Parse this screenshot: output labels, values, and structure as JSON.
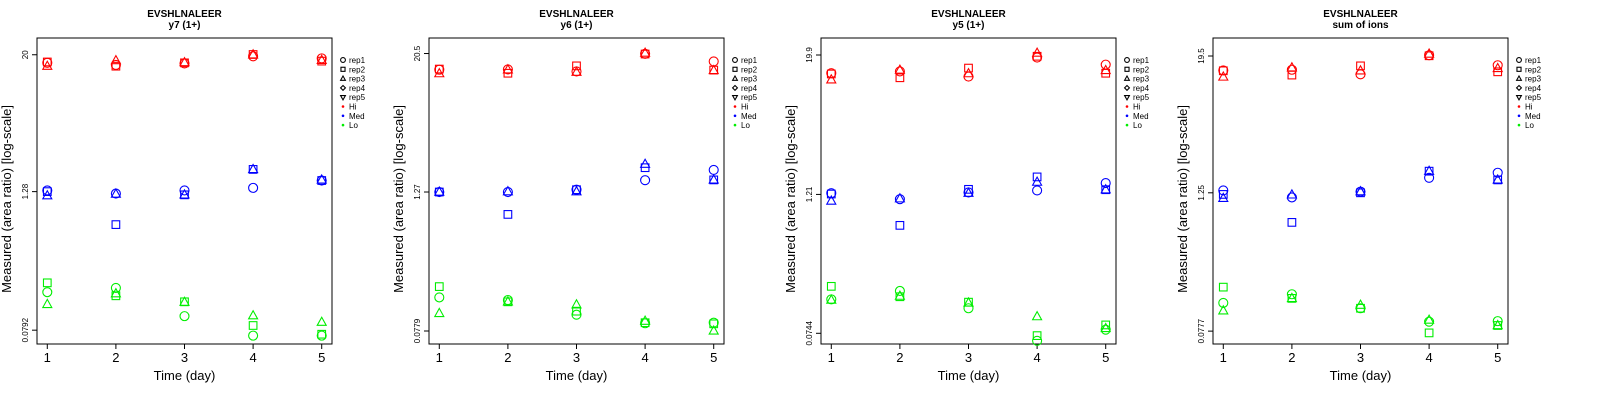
{
  "chart_data": [
    {
      "type": "scatter",
      "title": "EVSHLNALEER",
      "subtitle": "y7 (1+)",
      "xlabel": "Time (day)",
      "ylabel": "Measured (area ratio) [log-scale]",
      "x_ticks": [
        1,
        2,
        3,
        4,
        5
      ],
      "y_ticks": [
        {
          "value": 0.0792,
          "label": "0.0792"
        },
        {
          "value": 1.28,
          "label": "1.28"
        },
        {
          "value": 20,
          "label": "20"
        }
      ],
      "ylim": [
        0.06,
        28
      ],
      "groups": [
        {
          "name": "Hi",
          "color": "#ff0000"
        },
        {
          "name": "Med",
          "color": "#0000ff"
        },
        {
          "name": "Lo",
          "color": "#00ee00"
        }
      ],
      "reps": [
        "rep1",
        "rep2",
        "rep3",
        "rep4",
        "rep5"
      ],
      "series": [
        {
          "name": "Hi-rep1",
          "group": "Hi",
          "shape": "circle",
          "x": [
            1,
            2,
            3,
            4,
            5
          ],
          "y": [
            17.0,
            16.3,
            16.8,
            19.4,
            18.6
          ]
        },
        {
          "name": "Hi-rep2",
          "group": "Hi",
          "shape": "square",
          "x": [
            1,
            2,
            3,
            4,
            5
          ],
          "y": [
            17.3,
            15.9,
            17.0,
            20.1,
            17.6
          ]
        },
        {
          "name": "Hi-rep3",
          "group": "Hi",
          "shape": "triangle",
          "x": [
            1,
            2,
            3,
            4,
            5
          ],
          "y": [
            15.9,
            17.8,
            17.1,
            20.0,
            17.9
          ]
        },
        {
          "name": "Med-rep1",
          "group": "Med",
          "shape": "circle",
          "x": [
            1,
            2,
            3,
            4,
            5
          ],
          "y": [
            1.31,
            1.23,
            1.31,
            1.38,
            1.6
          ]
        },
        {
          "name": "Med-rep2",
          "group": "Med",
          "shape": "square",
          "x": [
            1,
            2,
            3,
            4,
            5
          ],
          "y": [
            1.28,
            0.66,
            1.2,
            2.0,
            1.6
          ]
        },
        {
          "name": "Med-rep3",
          "group": "Med",
          "shape": "triangle",
          "x": [
            1,
            2,
            3,
            4,
            5
          ],
          "y": [
            1.18,
            1.22,
            1.2,
            2.0,
            1.62
          ]
        },
        {
          "name": "Lo-rep1",
          "group": "Lo",
          "shape": "circle",
          "x": [
            1,
            2,
            3,
            4,
            5
          ],
          "y": [
            0.17,
            0.185,
            0.105,
            0.071,
            0.071
          ]
        },
        {
          "name": "Lo-rep2",
          "group": "Lo",
          "shape": "square",
          "x": [
            1,
            2,
            3,
            4,
            5
          ],
          "y": [
            0.205,
            0.158,
            0.14,
            0.087,
            0.073
          ]
        },
        {
          "name": "Lo-rep3",
          "group": "Lo",
          "shape": "triangle",
          "x": [
            1,
            2,
            3,
            4,
            5
          ],
          "y": [
            0.133,
            0.165,
            0.139,
            0.106,
            0.093
          ]
        }
      ]
    },
    {
      "type": "scatter",
      "title": "EVSHLNALEER",
      "subtitle": "y6 (1+)",
      "xlabel": "Time (day)",
      "ylabel": "Measured (area ratio) [log-scale]",
      "x_ticks": [
        1,
        2,
        3,
        4,
        5
      ],
      "y_ticks": [
        {
          "value": 0.0779,
          "label": "0.0779"
        },
        {
          "value": 1.27,
          "label": "1.27"
        },
        {
          "value": 20.5,
          "label": "20.5"
        }
      ],
      "ylim": [
        0.06,
        28
      ],
      "groups": [
        {
          "name": "Hi",
          "color": "#ff0000"
        },
        {
          "name": "Med",
          "color": "#0000ff"
        },
        {
          "name": "Lo",
          "color": "#00ee00"
        }
      ],
      "reps": [
        "rep1",
        "rep2",
        "rep3",
        "rep4",
        "rep5"
      ],
      "series": [
        {
          "name": "Hi-rep1",
          "group": "Hi",
          "shape": "circle",
          "x": [
            1,
            2,
            3,
            4,
            5
          ],
          "y": [
            14.8,
            14.9,
            14.3,
            20.4,
            17.5
          ]
        },
        {
          "name": "Hi-rep2",
          "group": "Hi",
          "shape": "square",
          "x": [
            1,
            2,
            3,
            4,
            5
          ],
          "y": [
            15.0,
            13.8,
            16.0,
            20.3,
            14.7
          ]
        },
        {
          "name": "Hi-rep3",
          "group": "Hi",
          "shape": "triangle",
          "x": [
            1,
            2,
            3,
            4,
            5
          ],
          "y": [
            13.7,
            14.8,
            14.1,
            20.7,
            14.6
          ]
        },
        {
          "name": "Med-rep1",
          "group": "Med",
          "shape": "circle",
          "x": [
            1,
            2,
            3,
            4,
            5
          ],
          "y": [
            1.27,
            1.27,
            1.33,
            1.61,
            1.98
          ]
        },
        {
          "name": "Med-rep2",
          "group": "Med",
          "shape": "square",
          "x": [
            1,
            2,
            3,
            4,
            5
          ],
          "y": [
            1.27,
            0.81,
            1.33,
            2.07,
            1.62
          ]
        },
        {
          "name": "Med-rep3",
          "group": "Med",
          "shape": "triangle",
          "x": [
            1,
            2,
            3,
            4,
            5
          ],
          "y": [
            1.27,
            1.28,
            1.28,
            2.22,
            1.62
          ]
        },
        {
          "name": "Lo-rep1",
          "group": "Lo",
          "shape": "circle",
          "x": [
            1,
            2,
            3,
            4,
            5
          ],
          "y": [
            0.153,
            0.145,
            0.108,
            0.091,
            0.092
          ]
        },
        {
          "name": "Lo-rep2",
          "group": "Lo",
          "shape": "square",
          "x": [
            1,
            2,
            3,
            4,
            5
          ],
          "y": [
            0.19,
            0.14,
            0.116,
            0.092,
            0.09
          ]
        },
        {
          "name": "Lo-rep3",
          "group": "Lo",
          "shape": "triangle",
          "x": [
            1,
            2,
            3,
            4,
            5
          ],
          "y": [
            0.111,
            0.14,
            0.132,
            0.095,
            0.078
          ]
        }
      ]
    },
    {
      "type": "scatter",
      "title": "EVSHLNALEER",
      "subtitle": "y5 (1+)",
      "xlabel": "Time (day)",
      "ylabel": "Measured (area ratio) [log-scale]",
      "x_ticks": [
        1,
        2,
        3,
        4,
        5
      ],
      "y_ticks": [
        {
          "value": 0.0744,
          "label": "0.0744"
        },
        {
          "value": 1.21,
          "label": "1.21"
        },
        {
          "value": 19.9,
          "label": "19.9"
        }
      ],
      "ylim": [
        0.06,
        28
      ],
      "groups": [
        {
          "name": "Hi",
          "color": "#ff0000"
        },
        {
          "name": "Med",
          "color": "#0000ff"
        },
        {
          "name": "Lo",
          "color": "#00ee00"
        }
      ],
      "reps": [
        "rep1",
        "rep2",
        "rep3",
        "rep4",
        "rep5"
      ],
      "series": [
        {
          "name": "Hi-rep1",
          "group": "Hi",
          "shape": "circle",
          "x": [
            1,
            2,
            3,
            4,
            5
          ],
          "y": [
            13.8,
            14.3,
            12.9,
            18.9,
            16.4
          ]
        },
        {
          "name": "Hi-rep2",
          "group": "Hi",
          "shape": "square",
          "x": [
            1,
            2,
            3,
            4,
            5
          ],
          "y": [
            13.6,
            12.6,
            15.3,
            19.4,
            13.8
          ]
        },
        {
          "name": "Hi-rep3",
          "group": "Hi",
          "shape": "triangle",
          "x": [
            1,
            2,
            3,
            4,
            5
          ],
          "y": [
            12.1,
            14.7,
            13.7,
            20.7,
            14.6
          ]
        },
        {
          "name": "Med-rep1",
          "group": "Med",
          "shape": "circle",
          "x": [
            1,
            2,
            3,
            4,
            5
          ],
          "y": [
            1.24,
            1.1,
            1.26,
            1.31,
            1.52
          ]
        },
        {
          "name": "Med-rep2",
          "group": "Med",
          "shape": "square",
          "x": [
            1,
            2,
            3,
            4,
            5
          ],
          "y": [
            1.22,
            0.65,
            1.34,
            1.72,
            1.33
          ]
        },
        {
          "name": "Med-rep3",
          "group": "Med",
          "shape": "triangle",
          "x": [
            1,
            2,
            3,
            4,
            5
          ],
          "y": [
            1.06,
            1.11,
            1.24,
            1.55,
            1.33
          ]
        },
        {
          "name": "Lo-rep1",
          "group": "Lo",
          "shape": "circle",
          "x": [
            1,
            2,
            3,
            4,
            5
          ],
          "y": [
            0.147,
            0.174,
            0.123,
            0.064,
            0.08
          ]
        },
        {
          "name": "Lo-rep2",
          "group": "Lo",
          "shape": "square",
          "x": [
            1,
            2,
            3,
            4,
            5
          ],
          "y": [
            0.191,
            0.155,
            0.139,
            0.071,
            0.088
          ]
        },
        {
          "name": "Lo-rep3",
          "group": "Lo",
          "shape": "triangle",
          "x": [
            1,
            2,
            3,
            4,
            5
          ],
          "y": [
            0.145,
            0.157,
            0.137,
            0.104,
            0.082
          ]
        }
      ]
    },
    {
      "type": "scatter",
      "title": "EVSHLNALEER",
      "subtitle": "sum of ions",
      "xlabel": "Time (day)",
      "ylabel": "Measured (area ratio) [log-scale]",
      "x_ticks": [
        1,
        2,
        3,
        4,
        5
      ],
      "y_ticks": [
        {
          "value": 0.0777,
          "label": "0.0777"
        },
        {
          "value": 1.25,
          "label": "1.25"
        },
        {
          "value": 19.5,
          "label": "19.5"
        }
      ],
      "ylim": [
        0.06,
        28
      ],
      "groups": [
        {
          "name": "Hi",
          "color": "#ff0000"
        },
        {
          "name": "Med",
          "color": "#0000ff"
        },
        {
          "name": "Lo",
          "color": "#00ee00"
        }
      ],
      "reps": [
        "rep1",
        "rep2",
        "rep3",
        "rep4",
        "rep5"
      ],
      "series": [
        {
          "name": "Hi-rep1",
          "group": "Hi",
          "shape": "circle",
          "x": [
            1,
            2,
            3,
            4,
            5
          ],
          "y": [
            14.6,
            14.8,
            13.5,
            19.8,
            16.2
          ]
        },
        {
          "name": "Hi-rep2",
          "group": "Hi",
          "shape": "square",
          "x": [
            1,
            2,
            3,
            4,
            5
          ],
          "y": [
            14.5,
            13.3,
            16.0,
            19.6,
            14.2
          ]
        },
        {
          "name": "Hi-rep3",
          "group": "Hi",
          "shape": "triangle",
          "x": [
            1,
            2,
            3,
            4,
            5
          ],
          "y": [
            12.8,
            15.4,
            14.5,
            20.3,
            15.2
          ]
        },
        {
          "name": "Med-rep1",
          "group": "Med",
          "shape": "circle",
          "x": [
            1,
            2,
            3,
            4,
            5
          ],
          "y": [
            1.31,
            1.14,
            1.28,
            1.69,
            1.87
          ]
        },
        {
          "name": "Med-rep2",
          "group": "Med",
          "shape": "square",
          "x": [
            1,
            2,
            3,
            4,
            5
          ],
          "y": [
            1.21,
            0.69,
            1.25,
            1.93,
            1.62
          ]
        },
        {
          "name": "Med-rep3",
          "group": "Med",
          "shape": "triangle",
          "x": [
            1,
            2,
            3,
            4,
            5
          ],
          "y": [
            1.12,
            1.2,
            1.28,
            1.93,
            1.62
          ]
        },
        {
          "name": "Lo-rep1",
          "group": "Lo",
          "shape": "circle",
          "x": [
            1,
            2,
            3,
            4,
            5
          ],
          "y": [
            0.137,
            0.163,
            0.123,
            0.094,
            0.095
          ]
        },
        {
          "name": "Lo-rep2",
          "group": "Lo",
          "shape": "square",
          "x": [
            1,
            2,
            3,
            4,
            5
          ],
          "y": [
            0.188,
            0.15,
            0.123,
            0.075,
            0.087
          ]
        },
        {
          "name": "Lo-rep3",
          "group": "Lo",
          "shape": "triangle",
          "x": [
            1,
            2,
            3,
            4,
            5
          ],
          "y": [
            0.117,
            0.15,
            0.131,
            0.097,
            0.087
          ]
        }
      ]
    }
  ]
}
